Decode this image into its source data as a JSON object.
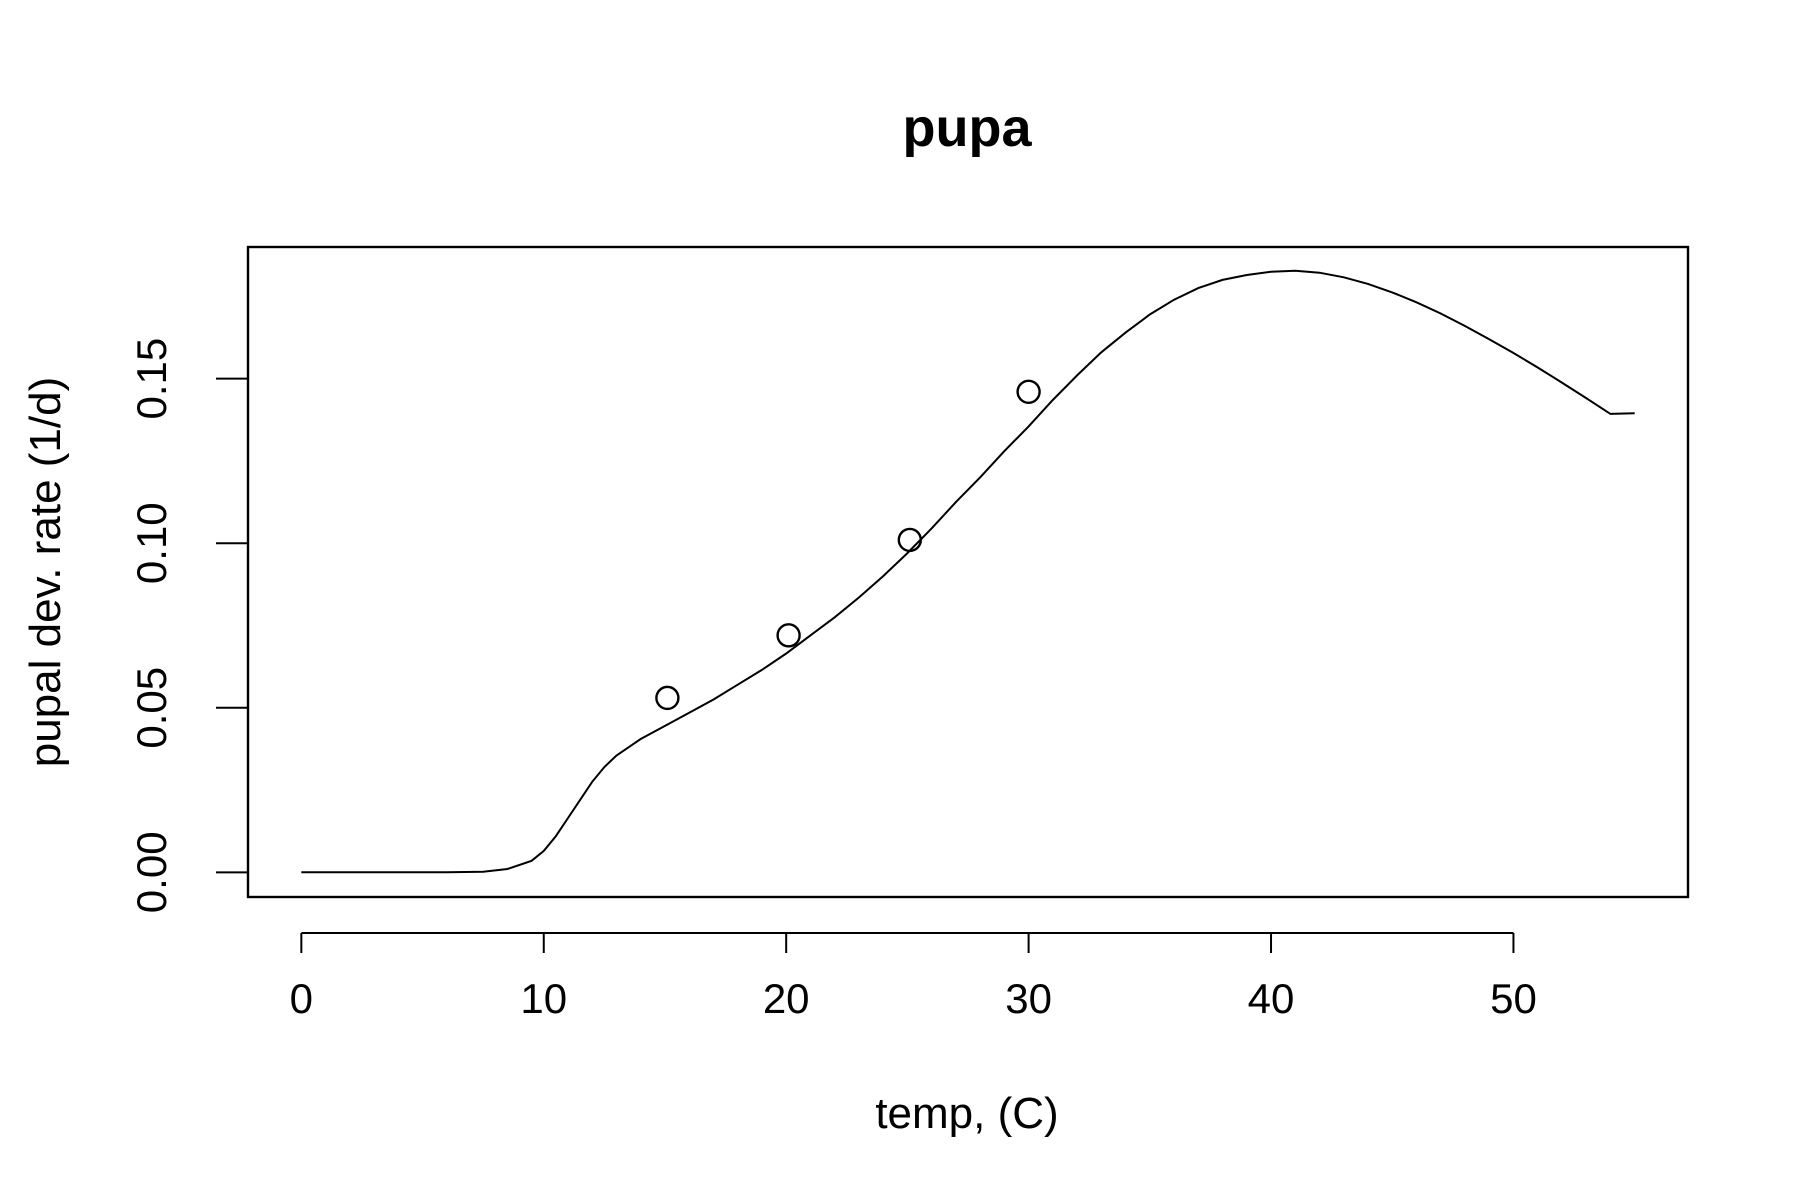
{
  "chart_data": {
    "type": "scatter",
    "title": "pupa",
    "xlabel": "temp, (C)",
    "ylabel": "pupal dev. rate (1/d)",
    "xlim": [
      -2.2,
      57.2
    ],
    "ylim": [
      -0.0075,
      0.19
    ],
    "x_ticks": [
      0,
      10,
      20,
      30,
      40,
      50
    ],
    "x_tick_labels": [
      "0",
      "10",
      "20",
      "30",
      "40",
      "50"
    ],
    "y_ticks": [
      0.0,
      0.05,
      0.1,
      0.15
    ],
    "y_tick_labels": [
      "0.00",
      "0.05",
      "0.10",
      "0.15"
    ],
    "grid": false,
    "series": [
      {
        "kind": "points",
        "x": [
          15.1,
          20.1,
          25.1,
          30.0
        ],
        "y": [
          0.053,
          0.072,
          0.101,
          0.146
        ]
      },
      {
        "kind": "curve",
        "x": [
          0,
          2,
          4,
          6,
          7.5,
          8.5,
          9.5,
          10,
          10.5,
          11,
          11.5,
          12,
          12.5,
          13,
          14,
          15,
          16,
          17,
          18,
          19,
          20,
          21,
          22,
          23,
          24,
          25,
          26,
          27,
          28,
          29,
          30,
          31,
          32,
          33,
          34,
          35,
          36,
          37,
          38,
          39,
          40,
          41,
          42,
          43,
          44,
          45,
          46,
          47,
          48,
          49,
          50,
          51,
          52,
          53,
          54,
          55
        ],
        "y": [
          0,
          0,
          0,
          0,
          0.0002,
          0.001,
          0.0035,
          0.0065,
          0.011,
          0.0165,
          0.022,
          0.0275,
          0.032,
          0.0355,
          0.0405,
          0.0445,
          0.0485,
          0.0525,
          0.057,
          0.0615,
          0.0665,
          0.072,
          0.0775,
          0.0835,
          0.09,
          0.097,
          0.1045,
          0.1125,
          0.12,
          0.128,
          0.1355,
          0.1435,
          0.151,
          0.158,
          0.164,
          0.1695,
          0.174,
          0.1775,
          0.18,
          0.1815,
          0.1825,
          0.1828,
          0.1822,
          0.1808,
          0.1788,
          0.1762,
          0.1732,
          0.1698,
          0.166,
          0.162,
          0.1578,
          0.1534,
          0.1488,
          0.1441,
          0.1393,
          0.1395
        ]
      }
    ]
  }
}
